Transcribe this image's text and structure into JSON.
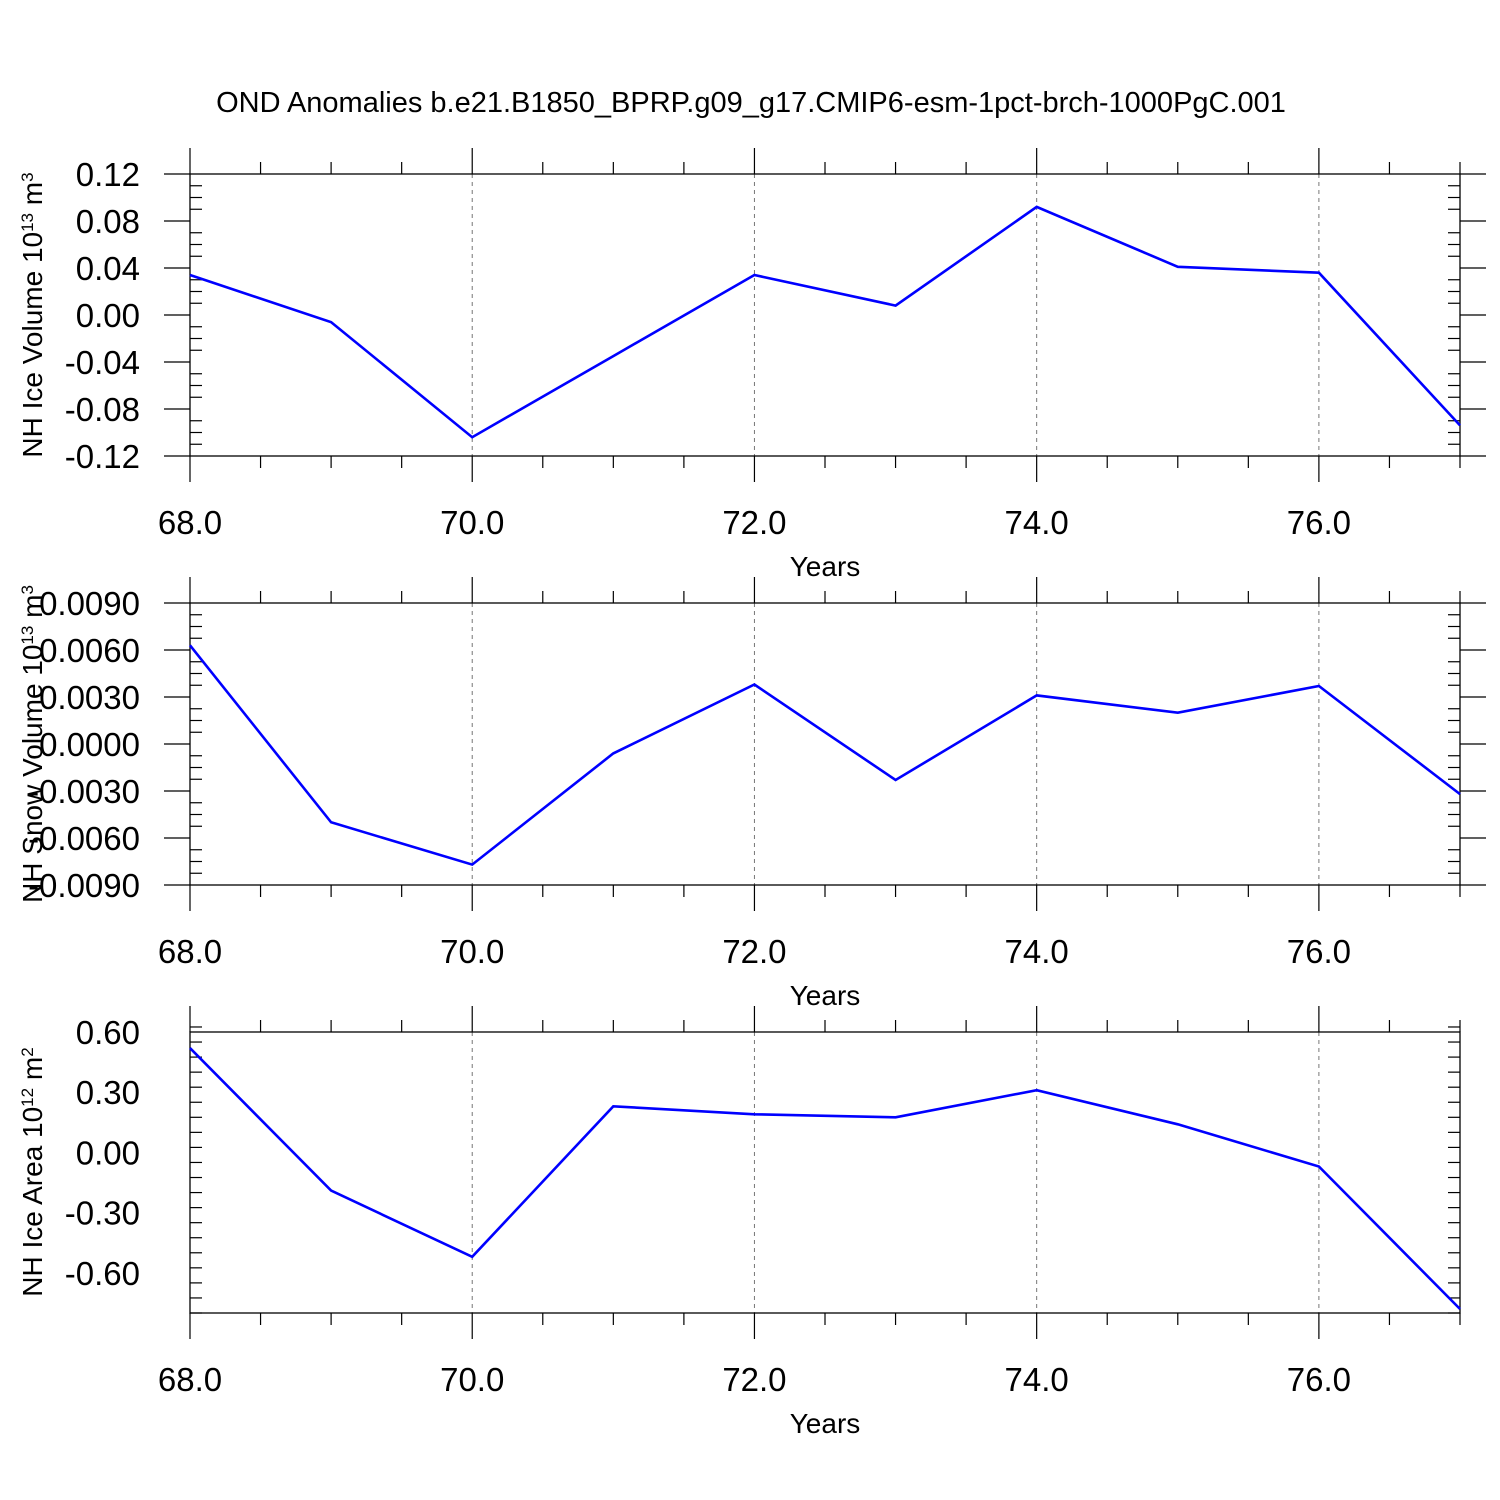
{
  "figure": {
    "title": "OND Anomalies b.e21.B1850_BPRP.g09_g17.CMIP6-esm-1pct-brch-1000PgC.001"
  },
  "line_color": "#0000ff",
  "chart_data": [
    {
      "type": "line",
      "ylabel": "NH Ice Volume 10",
      "ylabel_sup1": "13",
      "ylabel_unit": " m",
      "ylabel_sup2": "3",
      "xlabel": "Years",
      "xlim": [
        68,
        77
      ],
      "ylim": [
        -0.12,
        0.12
      ],
      "xticks": [
        68,
        70,
        72,
        74,
        76
      ],
      "xtick_labels": [
        "68.0",
        "70.0",
        "72.0",
        "74.0",
        "76.0"
      ],
      "yticks": [
        -0.12,
        -0.08,
        -0.04,
        0.0,
        0.04,
        0.08,
        0.12
      ],
      "ytick_labels": [
        "-0.12",
        "-0.08",
        "-0.04",
        "0.00",
        "0.04",
        "0.08",
        "0.12"
      ],
      "grid": "dashed vertical at major x ticks",
      "x": [
        68,
        69,
        70,
        71,
        72,
        73,
        74,
        75,
        76,
        77
      ],
      "y": [
        0.034,
        -0.006,
        -0.104,
        -0.035,
        0.034,
        0.008,
        0.092,
        0.041,
        0.036,
        -0.094
      ]
    },
    {
      "type": "line",
      "ylabel": "NH Snow Volume 10",
      "ylabel_sup1": "13",
      "ylabel_unit": " m",
      "ylabel_sup2": "3",
      "xlabel": "Years",
      "xlim": [
        68,
        77
      ],
      "ylim": [
        -0.009,
        0.009
      ],
      "xticks": [
        68,
        70,
        72,
        74,
        76
      ],
      "xtick_labels": [
        "68.0",
        "70.0",
        "72.0",
        "74.0",
        "76.0"
      ],
      "yticks": [
        -0.009,
        -0.006,
        -0.003,
        0.0,
        0.003,
        0.006,
        0.009
      ],
      "ytick_labels": [
        "-0.0090",
        "-0.0060",
        "-0.0030",
        "0.0000",
        "0.0030",
        "0.0060",
        "0.0090"
      ],
      "grid": "dashed vertical at major x ticks",
      "x": [
        68,
        69,
        70,
        71,
        72,
        73,
        74,
        75,
        76,
        77
      ],
      "y": [
        0.0063,
        -0.005,
        -0.0077,
        -0.0006,
        0.0038,
        -0.0023,
        0.0031,
        0.002,
        0.0037,
        -0.0032
      ]
    },
    {
      "type": "line",
      "ylabel": "NH Ice Area 10",
      "ylabel_sup1": "12",
      "ylabel_unit": " m",
      "ylabel_sup2": "2",
      "xlabel": "Years",
      "xlim": [
        68,
        77
      ],
      "ylim": [
        -0.8,
        0.6
      ],
      "xticks": [
        68,
        70,
        72,
        74,
        76
      ],
      "xtick_labels": [
        "68.0",
        "70.0",
        "72.0",
        "74.0",
        "76.0"
      ],
      "yticks": [
        -0.6,
        -0.3,
        0.0,
        0.3,
        0.6
      ],
      "ytick_labels": [
        "-0.60",
        "-0.30",
        "0.00",
        "0.30",
        "0.60"
      ],
      "grid": "dashed vertical at major x ticks",
      "x": [
        68,
        69,
        70,
        71,
        72,
        73,
        74,
        75,
        76,
        77
      ],
      "y": [
        0.52,
        -0.19,
        -0.52,
        0.23,
        0.19,
        0.175,
        0.31,
        0.14,
        -0.07,
        -0.78
      ]
    }
  ]
}
